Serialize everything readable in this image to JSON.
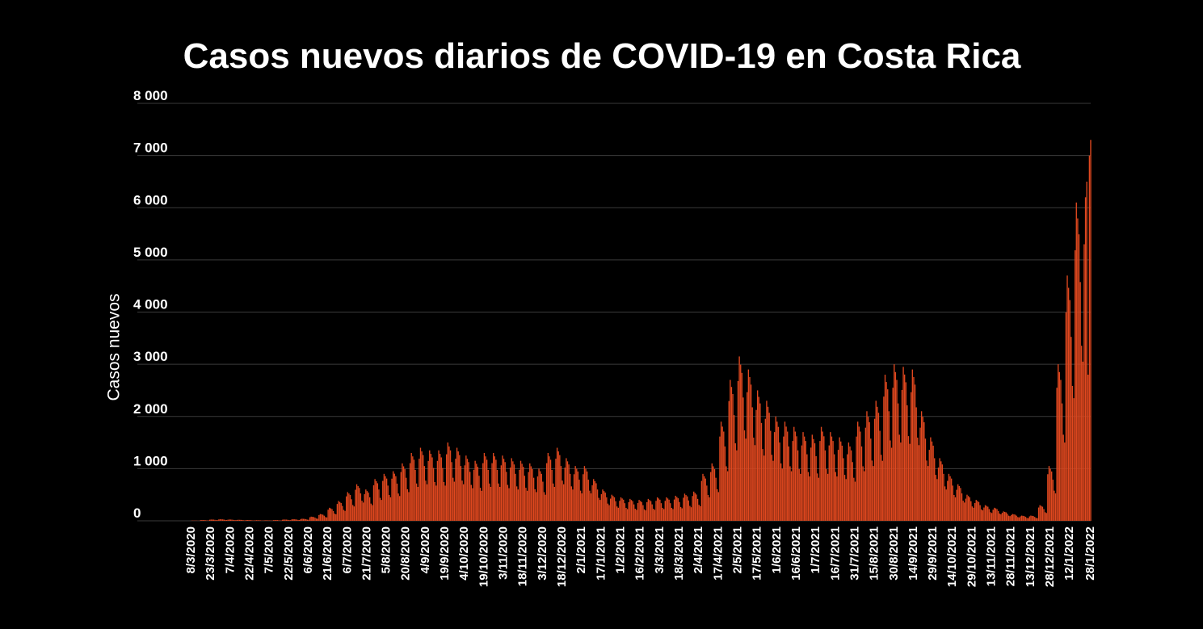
{
  "chart_data": {
    "type": "bar",
    "title": "Casos nuevos diarios de COVID-19 en Costa Rica",
    "y_label": "Casos nuevos",
    "color": "#e0481f",
    "title_color": "#ef5523",
    "grid": true,
    "ylim": [
      0,
      8000
    ],
    "yticks": [
      0,
      {
        "value": 1000,
        "label": "1 000"
      },
      {
        "value": 2000,
        "label": "2 000"
      },
      {
        "value": 3000,
        "label": "3 000"
      },
      {
        "value": 4000,
        "label": "4 000"
      },
      {
        "value": 5000,
        "label": "5 000"
      },
      {
        "value": 6000,
        "label": "6 000"
      },
      {
        "value": 7000,
        "label": "7 000"
      },
      {
        "value": 8000,
        "label": "8 000"
      }
    ],
    "categories": [
      "8/3/2020",
      null,
      null,
      null,
      null,
      null,
      null,
      null,
      null,
      null,
      null,
      null,
      null,
      null,
      null,
      "23/3/2020",
      null,
      null,
      null,
      null,
      null,
      null,
      null,
      null,
      null,
      null,
      null,
      null,
      null,
      null,
      "7/4/2020",
      null,
      null,
      null,
      null,
      null,
      null,
      null,
      null,
      null,
      null,
      null,
      null,
      null,
      null,
      "22/4/2020",
      null,
      null,
      null,
      null,
      null,
      null,
      null,
      null,
      null,
      null,
      null,
      null,
      null,
      null,
      "7/5/2020",
      null,
      null,
      null,
      null,
      null,
      null,
      null,
      null,
      null,
      null,
      null,
      null,
      null,
      null,
      "22/5/2020",
      null,
      null,
      null,
      null,
      null,
      null,
      null,
      null,
      null,
      null,
      null,
      null,
      null,
      null,
      "6/6/2020",
      null,
      null,
      null,
      null,
      null,
      null,
      null,
      null,
      null,
      null,
      null,
      null,
      null,
      null,
      "21/6/2020",
      null,
      null,
      null,
      null,
      null,
      null,
      null,
      null,
      null,
      null,
      null,
      null,
      null,
      null,
      "6/7/2020",
      null,
      null,
      null,
      null,
      null,
      null,
      null,
      null,
      null,
      null,
      null,
      null,
      null,
      null,
      "21/7/2020",
      null,
      null,
      null,
      null,
      null,
      null,
      null,
      null,
      null,
      null,
      null,
      null,
      null,
      null,
      "5/8/2020",
      null,
      null,
      null,
      null,
      null,
      null,
      null,
      null,
      null,
      null,
      null,
      null,
      null,
      null,
      "20/8/2020",
      null,
      null,
      null,
      null,
      null,
      null,
      null,
      null,
      null,
      null,
      null,
      null,
      null,
      null,
      "4/9/2020",
      null,
      null,
      null,
      null,
      null,
      null,
      null,
      null,
      null,
      null,
      null,
      null,
      null,
      null,
      "19/9/2020",
      null,
      null,
      null,
      null,
      null,
      null,
      null,
      null,
      null,
      null,
      null,
      null,
      null,
      null,
      "4/10/2020",
      null,
      null,
      null,
      null,
      null,
      null,
      null,
      null,
      null,
      null,
      null,
      null,
      null,
      null,
      "19/10/2020",
      null,
      null,
      null,
      null,
      null,
      null,
      null,
      null,
      null,
      null,
      null,
      null,
      null,
      null,
      "3/11/2020",
      null,
      null,
      null,
      null,
      null,
      null,
      null,
      null,
      null,
      null,
      null,
      null,
      null,
      null,
      "18/11/2020",
      null,
      null,
      null,
      null,
      null,
      null,
      null,
      null,
      null,
      null,
      null,
      null,
      null,
      null,
      "3/12/2020",
      null,
      null,
      null,
      null,
      null,
      null,
      null,
      null,
      null,
      null,
      null,
      null,
      null,
      null,
      "18/12/2020",
      null,
      null,
      null,
      null,
      null,
      null,
      null,
      null,
      null,
      null,
      null,
      null,
      null,
      null,
      "2/1/2021",
      null,
      null,
      null,
      null,
      null,
      null,
      null,
      null,
      null,
      null,
      null,
      null,
      null,
      null,
      "17/1/2021",
      null,
      null,
      null,
      null,
      null,
      null,
      null,
      null,
      null,
      null,
      null,
      null,
      null,
      null,
      "1/2/2021",
      null,
      null,
      null,
      null,
      null,
      null,
      null,
      null,
      null,
      null,
      null,
      null,
      null,
      null,
      "16/2/2021",
      null,
      null,
      null,
      null,
      null,
      null,
      null,
      null,
      null,
      null,
      null,
      null,
      null,
      null,
      "3/3/2021",
      null,
      null,
      null,
      null,
      null,
      null,
      null,
      null,
      null,
      null,
      null,
      null,
      null,
      null,
      "18/3/2021",
      null,
      null,
      null,
      null,
      null,
      null,
      null,
      null,
      null,
      null,
      null,
      null,
      null,
      null,
      "2/4/2021",
      null,
      null,
      null,
      null,
      null,
      null,
      null,
      null,
      null,
      null,
      null,
      null,
      null,
      null,
      "17/4/2021",
      null,
      null,
      null,
      null,
      null,
      null,
      null,
      null,
      null,
      null,
      null,
      null,
      null,
      null,
      "2/5/2021",
      null,
      null,
      null,
      null,
      null,
      null,
      null,
      null,
      null,
      null,
      null,
      null,
      null,
      null,
      "17/5/2021",
      null,
      null,
      null,
      null,
      null,
      null,
      null,
      null,
      null,
      null,
      null,
      null,
      null,
      null,
      "1/6/2021",
      null,
      null,
      null,
      null,
      null,
      null,
      null,
      null,
      null,
      null,
      null,
      null,
      null,
      null,
      "16/6/2021",
      null,
      null,
      null,
      null,
      null,
      null,
      null,
      null,
      null,
      null,
      null,
      null,
      null,
      null,
      "1/7/2021",
      null,
      null,
      null,
      null,
      null,
      null,
      null,
      null,
      null,
      null,
      null,
      null,
      null,
      null,
      "16/7/2021",
      null,
      null,
      null,
      null,
      null,
      null,
      null,
      null,
      null,
      null,
      null,
      null,
      null,
      null,
      "31/7/2021",
      null,
      null,
      null,
      null,
      null,
      null,
      null,
      null,
      null,
      null,
      null,
      null,
      null,
      null,
      "15/8/2021",
      null,
      null,
      null,
      null,
      null,
      null,
      null,
      null,
      null,
      null,
      null,
      null,
      null,
      null,
      "30/8/2021",
      null,
      null,
      null,
      null,
      null,
      null,
      null,
      null,
      null,
      null,
      null,
      null,
      null,
      null,
      "14/9/2021",
      null,
      null,
      null,
      null,
      null,
      null,
      null,
      null,
      null,
      null,
      null,
      null,
      null,
      null,
      "29/9/2021",
      null,
      null,
      null,
      null,
      null,
      null,
      null,
      null,
      null,
      null,
      null,
      null,
      null,
      null,
      "14/10/2021",
      null,
      null,
      null,
      null,
      null,
      null,
      null,
      null,
      null,
      null,
      null,
      null,
      null,
      null,
      "29/10/2021",
      null,
      null,
      null,
      null,
      null,
      null,
      null,
      null,
      null,
      null,
      null,
      null,
      null,
      null,
      "13/11/2021",
      null,
      null,
      null,
      null,
      null,
      null,
      null,
      null,
      null,
      null,
      null,
      null,
      null,
      null,
      "28/11/2021",
      null,
      null,
      null,
      null,
      null,
      null,
      null,
      null,
      null,
      null,
      null,
      null,
      null,
      null,
      "13/12/2021",
      null,
      null,
      null,
      null,
      null,
      null,
      null,
      null,
      null,
      null,
      null,
      null,
      null,
      null,
      "28/12/2021",
      null,
      null,
      null,
      null,
      null,
      null,
      null,
      null,
      null,
      null,
      null,
      null,
      null,
      null,
      "12/1/2022",
      null,
      null,
      null,
      null,
      null,
      null,
      null,
      null,
      null,
      null,
      null,
      null,
      null,
      null,
      null,
      "28/1/2022"
    ],
    "values": [
      4,
      5,
      5,
      5,
      4,
      3,
      2,
      13,
      15,
      14,
      14,
      11,
      8,
      8,
      21,
      25,
      24,
      23,
      19,
      14,
      13,
      26,
      30,
      29,
      27,
      23,
      17,
      15,
      21,
      25,
      24,
      23,
      19,
      14,
      13,
      17,
      20,
      19,
      18,
      15,
      11,
      10,
      13,
      15,
      14,
      14,
      11,
      8,
      8,
      10,
      12,
      11,
      11,
      9,
      7,
      6,
      9,
      10,
      10,
      9,
      8,
      6,
      5,
      13,
      15,
      14,
      14,
      11,
      8,
      8,
      21,
      25,
      24,
      23,
      19,
      14,
      13,
      26,
      30,
      29,
      27,
      23,
      17,
      15,
      34,
      40,
      38,
      36,
      30,
      22,
      20,
      68,
      80,
      76,
      72,
      60,
      44,
      40,
      111,
      130,
      124,
      117,
      98,
      72,
      65,
      213,
      250,
      238,
      225,
      188,
      138,
      125,
      323,
      380,
      361,
      342,
      285,
      209,
      190,
      468,
      550,
      523,
      495,
      413,
      303,
      275,
      595,
      700,
      665,
      630,
      525,
      385,
      350,
      510,
      600,
      570,
      540,
      450,
      330,
      300,
      680,
      800,
      760,
      720,
      600,
      440,
      400,
      765,
      900,
      855,
      810,
      675,
      495,
      450,
      808,
      950,
      903,
      855,
      713,
      523,
      475,
      935,
      1100,
      1045,
      990,
      825,
      605,
      550,
      1105,
      1300,
      1235,
      1170,
      975,
      715,
      650,
      1190,
      1400,
      1330,
      1260,
      1050,
      770,
      700,
      1148,
      1350,
      1283,
      1215,
      1013,
      743,
      675,
      1148,
      1350,
      1283,
      1215,
      1013,
      743,
      675,
      1275,
      1500,
      1425,
      1350,
      1125,
      825,
      750,
      1190,
      1400,
      1330,
      1260,
      1050,
      770,
      700,
      1063,
      1250,
      1188,
      1125,
      938,
      688,
      625,
      978,
      1150,
      1093,
      1035,
      863,
      633,
      575,
      1105,
      1300,
      1235,
      1170,
      975,
      715,
      650,
      1105,
      1300,
      1235,
      1170,
      975,
      715,
      650,
      1063,
      1250,
      1188,
      1125,
      938,
      688,
      625,
      1020,
      1200,
      1140,
      1080,
      900,
      660,
      600,
      978,
      1150,
      1093,
      1035,
      863,
      633,
      575,
      935,
      1100,
      1045,
      990,
      825,
      605,
      550,
      850,
      1000,
      950,
      900,
      750,
      550,
      500,
      1105,
      1300,
      1235,
      1170,
      975,
      715,
      650,
      1190,
      1400,
      1330,
      1260,
      1050,
      770,
      700,
      1020,
      1200,
      1140,
      1080,
      900,
      660,
      600,
      893,
      1050,
      998,
      945,
      788,
      578,
      525,
      893,
      1050,
      998,
      945,
      788,
      578,
      525,
      680,
      800,
      760,
      720,
      600,
      440,
      400,
      510,
      600,
      570,
      540,
      450,
      330,
      300,
      425,
      500,
      475,
      450,
      375,
      275,
      250,
      383,
      450,
      428,
      405,
      338,
      248,
      225,
      357,
      420,
      399,
      378,
      315,
      231,
      210,
      340,
      400,
      380,
      360,
      300,
      220,
      200,
      357,
      420,
      399,
      378,
      315,
      231,
      210,
      383,
      450,
      428,
      405,
      338,
      248,
      225,
      383,
      450,
      428,
      405,
      338,
      248,
      225,
      408,
      480,
      456,
      432,
      360,
      264,
      240,
      442,
      520,
      494,
      468,
      390,
      286,
      260,
      476,
      560,
      532,
      504,
      420,
      308,
      280,
      765,
      900,
      855,
      810,
      675,
      495,
      450,
      935,
      1100,
      1045,
      990,
      825,
      605,
      550,
      1615,
      1900,
      1805,
      1710,
      1425,
      1045,
      950,
      2295,
      2700,
      2565,
      2430,
      2025,
      1485,
      1350,
      2678,
      3150,
      2993,
      2835,
      2363,
      1733,
      1575,
      2465,
      2900,
      2755,
      2610,
      2175,
      1595,
      1450,
      2125,
      2500,
      2375,
      2250,
      1875,
      1375,
      1250,
      1955,
      2300,
      2185,
      2070,
      1725,
      1265,
      1150,
      1700,
      2000,
      1900,
      1800,
      1500,
      1100,
      1000,
      1615,
      1900,
      1805,
      1710,
      1425,
      1045,
      950,
      1530,
      1800,
      1710,
      1620,
      1350,
      990,
      900,
      1445,
      1700,
      1615,
      1530,
      1275,
      935,
      850,
      1403,
      1650,
      1568,
      1485,
      1238,
      908,
      825,
      1530,
      1800,
      1710,
      1620,
      1350,
      990,
      900,
      1445,
      1700,
      1615,
      1530,
      1275,
      935,
      850,
      1360,
      1600,
      1520,
      1440,
      1200,
      880,
      800,
      1275,
      1500,
      1425,
      1350,
      1125,
      825,
      750,
      1615,
      1900,
      1805,
      1710,
      1425,
      1045,
      950,
      1785,
      2100,
      1995,
      1890,
      1575,
      1155,
      1050,
      1955,
      2300,
      2185,
      2070,
      1725,
      1265,
      1150,
      2380,
      2800,
      2660,
      2520,
      2100,
      1540,
      1400,
      2550,
      3000,
      2850,
      2700,
      2250,
      1650,
      1500,
      2508,
      2950,
      2803,
      2655,
      2213,
      1623,
      1475,
      2465,
      2900,
      2755,
      2610,
      2175,
      1595,
      1450,
      1785,
      2100,
      1995,
      1890,
      1575,
      1155,
      1050,
      1360,
      1600,
      1520,
      1440,
      1200,
      880,
      800,
      1020,
      1200,
      1140,
      1080,
      900,
      660,
      600,
      765,
      900,
      855,
      810,
      675,
      495,
      450,
      595,
      700,
      665,
      630,
      525,
      385,
      350,
      425,
      500,
      475,
      450,
      375,
      275,
      250,
      340,
      400,
      380,
      360,
      300,
      220,
      200,
      255,
      300,
      285,
      270,
      225,
      165,
      150,
      213,
      250,
      238,
      225,
      188,
      138,
      125,
      153,
      180,
      171,
      162,
      135,
      99,
      90,
      111,
      130,
      124,
      117,
      98,
      72,
      65,
      85,
      100,
      95,
      90,
      75,
      55,
      50,
      85,
      100,
      95,
      90,
      75,
      55,
      50,
      255,
      300,
      285,
      270,
      225,
      165,
      150,
      893,
      1050,
      998,
      945,
      788,
      578,
      525,
      2550,
      3000,
      2850,
      2700,
      2250,
      1650,
      1500,
      3995,
      4700,
      4465,
      4230,
      3525,
      2585,
      2350,
      5185,
      6100,
      5795,
      5490,
      4575,
      3355,
      3050,
      5300,
      6200,
      6500,
      2800,
      7000,
      7300
    ]
  }
}
